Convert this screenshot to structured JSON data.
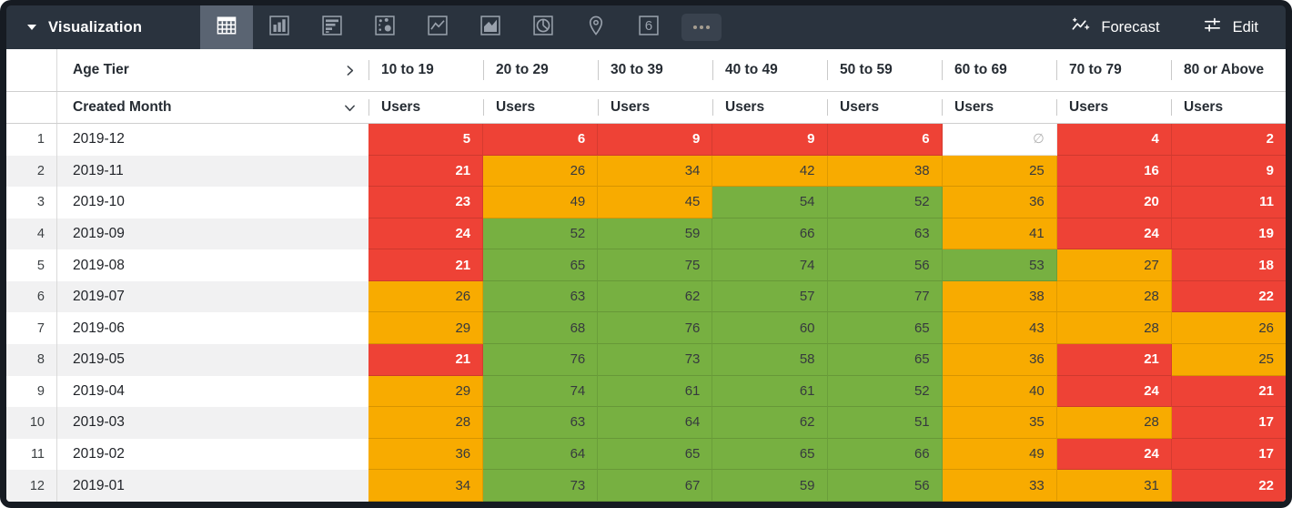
{
  "toolbar": {
    "title": "Visualization",
    "forecast_label": "Forecast",
    "edit_label": "Edit",
    "viz_types": [
      {
        "name": "table",
        "selected": true
      },
      {
        "name": "bar",
        "selected": false
      },
      {
        "name": "row",
        "selected": false
      },
      {
        "name": "scatter",
        "selected": false
      },
      {
        "name": "line",
        "selected": false
      },
      {
        "name": "area",
        "selected": false
      },
      {
        "name": "pie",
        "selected": false
      },
      {
        "name": "map",
        "selected": false
      },
      {
        "name": "single-value",
        "selected": false,
        "glyph": "6"
      },
      {
        "name": "more",
        "selected": false
      }
    ]
  },
  "table": {
    "pivot_field": "Age Tier",
    "row_field": "Created Month",
    "measure_label": "Users",
    "null_symbol": "∅",
    "columns": [
      "10 to 19",
      "20 to 29",
      "30 to 39",
      "40 to 49",
      "50 to 59",
      "60 to 69",
      "70 to 79",
      "80 or Above"
    ],
    "rows": [
      {
        "index": 1,
        "month": "2019-12",
        "values": [
          5,
          6,
          9,
          9,
          6,
          null,
          4,
          2
        ],
        "colors": [
          "red",
          "red",
          "red",
          "red",
          "red",
          "null",
          "red",
          "red"
        ]
      },
      {
        "index": 2,
        "month": "2019-11",
        "values": [
          21,
          26,
          34,
          42,
          38,
          25,
          16,
          9
        ],
        "colors": [
          "red",
          "orange",
          "orange",
          "orange",
          "orange",
          "orange",
          "red",
          "red"
        ]
      },
      {
        "index": 3,
        "month": "2019-10",
        "values": [
          23,
          49,
          45,
          54,
          52,
          36,
          20,
          11
        ],
        "colors": [
          "red",
          "orange",
          "orange",
          "green",
          "green",
          "orange",
          "red",
          "red"
        ]
      },
      {
        "index": 4,
        "month": "2019-09",
        "values": [
          24,
          52,
          59,
          66,
          63,
          41,
          24,
          19
        ],
        "colors": [
          "red",
          "green",
          "green",
          "green",
          "green",
          "orange",
          "red",
          "red"
        ]
      },
      {
        "index": 5,
        "month": "2019-08",
        "values": [
          21,
          65,
          75,
          74,
          56,
          53,
          27,
          18
        ],
        "colors": [
          "red",
          "green",
          "green",
          "green",
          "green",
          "green",
          "orange",
          "red"
        ]
      },
      {
        "index": 6,
        "month": "2019-07",
        "values": [
          26,
          63,
          62,
          57,
          77,
          38,
          28,
          22
        ],
        "colors": [
          "orange",
          "green",
          "green",
          "green",
          "green",
          "orange",
          "orange",
          "red"
        ]
      },
      {
        "index": 7,
        "month": "2019-06",
        "values": [
          29,
          68,
          76,
          60,
          65,
          43,
          28,
          26
        ],
        "colors": [
          "orange",
          "green",
          "green",
          "green",
          "green",
          "orange",
          "orange",
          "orange"
        ]
      },
      {
        "index": 8,
        "month": "2019-05",
        "values": [
          21,
          76,
          73,
          58,
          65,
          36,
          21,
          25
        ],
        "colors": [
          "red",
          "green",
          "green",
          "green",
          "green",
          "orange",
          "red",
          "orange"
        ]
      },
      {
        "index": 9,
        "month": "2019-04",
        "values": [
          29,
          74,
          61,
          61,
          52,
          40,
          24,
          21
        ],
        "colors": [
          "orange",
          "green",
          "green",
          "green",
          "green",
          "orange",
          "red",
          "red"
        ]
      },
      {
        "index": 10,
        "month": "2019-03",
        "values": [
          28,
          63,
          64,
          62,
          51,
          35,
          28,
          17
        ],
        "colors": [
          "orange",
          "green",
          "green",
          "green",
          "green",
          "orange",
          "orange",
          "red"
        ]
      },
      {
        "index": 11,
        "month": "2019-02",
        "values": [
          36,
          64,
          65,
          65,
          66,
          49,
          24,
          17
        ],
        "colors": [
          "orange",
          "green",
          "green",
          "green",
          "green",
          "orange",
          "red",
          "red"
        ]
      },
      {
        "index": 12,
        "month": "2019-01",
        "values": [
          34,
          73,
          67,
          59,
          56,
          33,
          31,
          22
        ],
        "colors": [
          "orange",
          "green",
          "green",
          "green",
          "green",
          "orange",
          "orange",
          "red"
        ]
      }
    ]
  },
  "colors": {
    "red": "#ee4236",
    "orange": "#f8ab00",
    "green": "#77b041",
    "toolbar_bg": "#2a333e",
    "selected_tab_bg": "#5a6472",
    "frame": "#161b22",
    "icon_gray": "#99a1ac"
  }
}
